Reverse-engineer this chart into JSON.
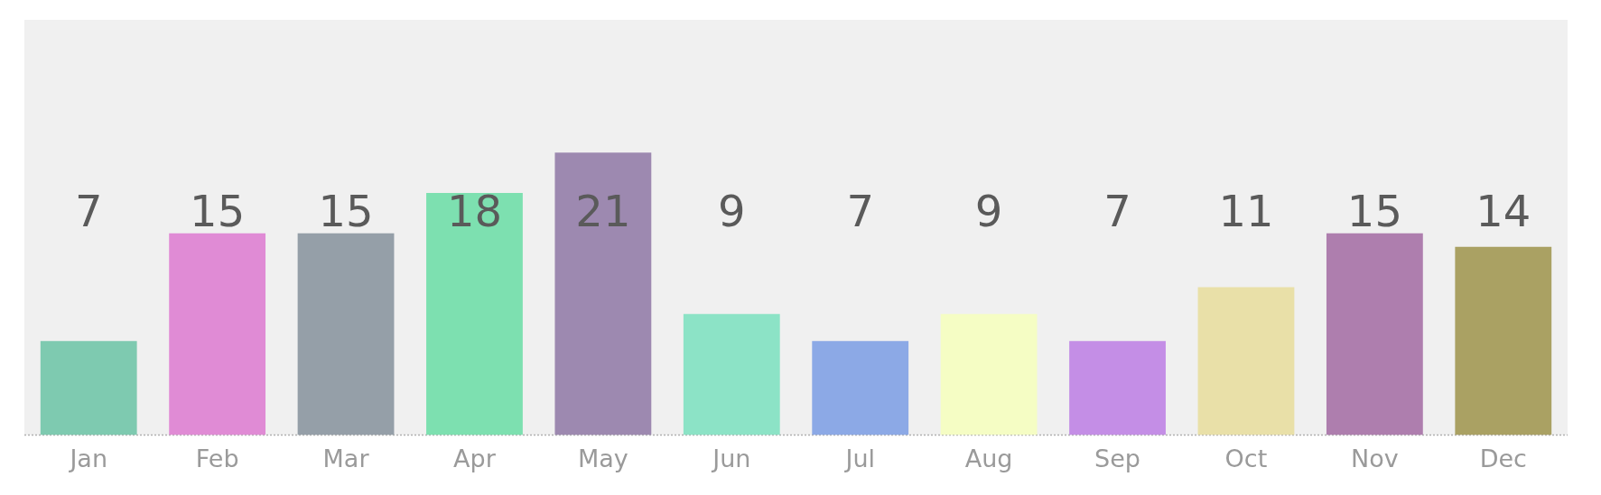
{
  "chart_data": {
    "type": "bar",
    "categories": [
      "Jan",
      "Feb",
      "Mar",
      "Apr",
      "May",
      "Jun",
      "Jul",
      "Aug",
      "Sep",
      "Oct",
      "Nov",
      "Dec"
    ],
    "values": [
      7,
      15,
      15,
      18,
      21,
      9,
      7,
      9,
      7,
      11,
      15,
      14
    ],
    "colors": [
      "#7ecab0",
      "#e08bd5",
      "#959fa8",
      "#7de0b0",
      "#9d89b0",
      "#8ce3c6",
      "#8ca9e6",
      "#f5fdc4",
      "#c48ee6",
      "#e9e0a8",
      "#ae7eae",
      "#aaa163"
    ],
    "data_labels": true,
    "grid": false,
    "legend": false
  }
}
